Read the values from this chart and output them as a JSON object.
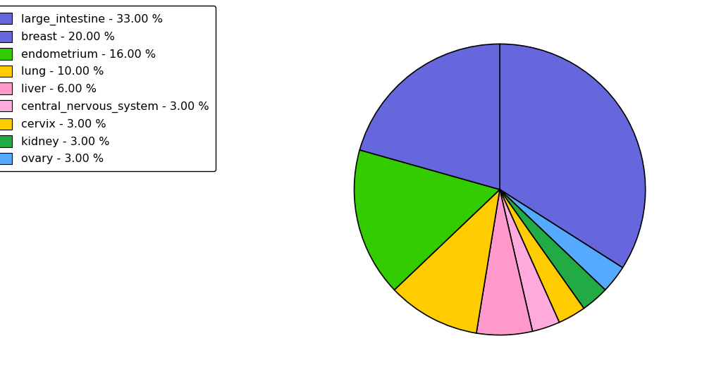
{
  "labels": [
    "large_intestine - 33.00 %",
    "breast - 20.00 %",
    "endometrium - 16.00 %",
    "lung - 10.00 %",
    "liver - 6.00 %",
    "central_nervous_system - 3.00 %",
    "cervix - 3.00 %",
    "kidney - 3.00 %",
    "ovary - 3.00 %"
  ],
  "values": [
    33,
    20,
    16,
    10,
    6,
    3,
    3,
    3,
    3
  ],
  "colors": [
    "#6666dd",
    "#6666dd",
    "#33cc00",
    "#ffcc00",
    "#ff99cc",
    "#ffaadd",
    "#ffcc00",
    "#22aa44",
    "#55aaff"
  ],
  "startangle": 90,
  "background_color": "#ffffff",
  "legend_fontsize": 11.5,
  "fig_width": 10.13,
  "fig_height": 5.38,
  "dpi": 100
}
